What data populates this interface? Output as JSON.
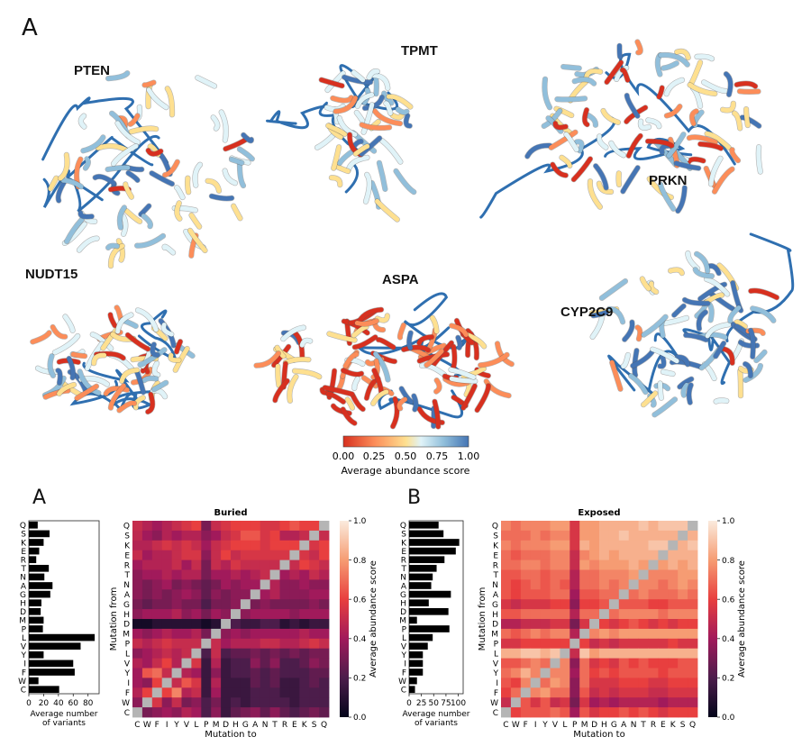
{
  "top_figure": {
    "panel_label": "A",
    "proteins": [
      {
        "name": "PTEN"
      },
      {
        "name": "TPMT"
      },
      {
        "name": "PRKN"
      },
      {
        "name": "NUDT15"
      },
      {
        "name": "ASPA"
      },
      {
        "name": "CYP2C9"
      }
    ],
    "colorbar": {
      "label": "Average abundance score",
      "ticks": [
        "0.00",
        "0.25",
        "0.50",
        "0.75",
        "1.00"
      ],
      "colors": [
        "#d7301f",
        "#fc8d59",
        "#fee090",
        "#e0f3f8",
        "#91bfdb",
        "#4575b4"
      ]
    }
  },
  "chart_data": [
    {
      "type": "bar",
      "orientation": "horizontal",
      "panel_label": "A",
      "categories": [
        "Q",
        "S",
        "K",
        "E",
        "R",
        "T",
        "N",
        "A",
        "G",
        "H",
        "D",
        "M",
        "P",
        "L",
        "V",
        "Y",
        "I",
        "F",
        "W",
        "C"
      ],
      "values": [
        12,
        28,
        20,
        14,
        10,
        27,
        21,
        32,
        29,
        17,
        16,
        20,
        19,
        89,
        70,
        20,
        60,
        62,
        13,
        41
      ],
      "xlabel": "Average number\nof variants",
      "xticks": [
        0,
        20,
        40,
        60,
        80
      ],
      "xlim": [
        0,
        95
      ]
    },
    {
      "type": "heatmap",
      "title": "Buried",
      "rows": [
        "Q",
        "S",
        "K",
        "E",
        "R",
        "T",
        "N",
        "A",
        "G",
        "H",
        "D",
        "M",
        "P",
        "L",
        "V",
        "Y",
        "I",
        "F",
        "W",
        "C"
      ],
      "cols": [
        "C",
        "W",
        "F",
        "I",
        "Y",
        "V",
        "L",
        "P",
        "M",
        "D",
        "H",
        "G",
        "A",
        "N",
        "T",
        "R",
        "E",
        "K",
        "S",
        "Q"
      ],
      "ylabel": "Mutation from",
      "xlabel": "Mutation to",
      "colorbar_label": "Average abundance score",
      "colorbar_ticks": [
        "0.0",
        "0.2",
        "0.4",
        "0.6",
        "0.8",
        "1.0"
      ],
      "vmin": 0.0,
      "vmax": 1.0,
      "values": [
        [
          0.5,
          0.45,
          0.4,
          0.45,
          0.5,
          0.55,
          0.6,
          0.3,
          0.5,
          0.55,
          0.6,
          0.6,
          0.6,
          0.55,
          0.55,
          0.6,
          0.65,
          0.6,
          0.6,
          0.78
        ],
        [
          0.48,
          0.4,
          0.35,
          0.45,
          0.4,
          0.45,
          0.45,
          0.35,
          0.4,
          0.5,
          0.55,
          0.65,
          0.65,
          0.55,
          0.6,
          0.45,
          0.45,
          0.5,
          0.78,
          0.5
        ],
        [
          0.45,
          0.45,
          0.5,
          0.55,
          0.5,
          0.55,
          0.5,
          0.4,
          0.5,
          0.55,
          0.6,
          0.6,
          0.6,
          0.55,
          0.6,
          0.6,
          0.6,
          0.78,
          0.55,
          0.6
        ],
        [
          0.5,
          0.4,
          0.45,
          0.45,
          0.5,
          0.55,
          0.55,
          0.35,
          0.5,
          0.6,
          0.5,
          0.55,
          0.55,
          0.55,
          0.55,
          0.55,
          0.78,
          0.55,
          0.5,
          0.6
        ],
        [
          0.4,
          0.45,
          0.45,
          0.45,
          0.5,
          0.4,
          0.5,
          0.3,
          0.5,
          0.45,
          0.55,
          0.5,
          0.5,
          0.5,
          0.5,
          0.78,
          0.5,
          0.6,
          0.55,
          0.5
        ],
        [
          0.35,
          0.4,
          0.4,
          0.45,
          0.4,
          0.45,
          0.45,
          0.3,
          0.4,
          0.4,
          0.45,
          0.4,
          0.45,
          0.5,
          0.78,
          0.4,
          0.45,
          0.4,
          0.5,
          0.45
        ],
        [
          0.35,
          0.3,
          0.35,
          0.4,
          0.3,
          0.35,
          0.3,
          0.25,
          0.3,
          0.4,
          0.35,
          0.4,
          0.4,
          0.78,
          0.45,
          0.35,
          0.35,
          0.4,
          0.35,
          0.35
        ],
        [
          0.35,
          0.3,
          0.35,
          0.3,
          0.35,
          0.4,
          0.35,
          0.25,
          0.35,
          0.3,
          0.35,
          0.35,
          0.78,
          0.4,
          0.45,
          0.35,
          0.35,
          0.35,
          0.4,
          0.4
        ],
        [
          0.3,
          0.25,
          0.3,
          0.3,
          0.35,
          0.3,
          0.3,
          0.2,
          0.3,
          0.3,
          0.35,
          0.78,
          0.3,
          0.35,
          0.3,
          0.3,
          0.3,
          0.3,
          0.35,
          0.3
        ],
        [
          0.35,
          0.4,
          0.4,
          0.4,
          0.45,
          0.35,
          0.4,
          0.3,
          0.4,
          0.35,
          0.78,
          0.35,
          0.4,
          0.4,
          0.4,
          0.4,
          0.35,
          0.4,
          0.4,
          0.4
        ],
        [
          0.05,
          0.05,
          0.1,
          0.1,
          0.1,
          0.1,
          0.1,
          0.05,
          0.1,
          0.78,
          0.2,
          0.15,
          0.15,
          0.2,
          0.2,
          0.1,
          0.15,
          0.1,
          0.15,
          0.15
        ],
        [
          0.4,
          0.35,
          0.4,
          0.45,
          0.4,
          0.4,
          0.45,
          0.3,
          0.78,
          0.35,
          0.4,
          0.35,
          0.4,
          0.4,
          0.4,
          0.4,
          0.4,
          0.45,
          0.4,
          0.4
        ],
        [
          0.5,
          0.45,
          0.5,
          0.55,
          0.5,
          0.5,
          0.5,
          0.78,
          0.5,
          0.4,
          0.45,
          0.45,
          0.45,
          0.5,
          0.5,
          0.45,
          0.45,
          0.5,
          0.55,
          0.5
        ],
        [
          0.35,
          0.4,
          0.45,
          0.5,
          0.45,
          0.5,
          0.78,
          0.2,
          0.5,
          0.2,
          0.25,
          0.25,
          0.3,
          0.25,
          0.3,
          0.25,
          0.3,
          0.25,
          0.3,
          0.3
        ],
        [
          0.45,
          0.4,
          0.5,
          0.6,
          0.45,
          0.78,
          0.55,
          0.15,
          0.45,
          0.15,
          0.2,
          0.2,
          0.35,
          0.25,
          0.35,
          0.2,
          0.2,
          0.25,
          0.35,
          0.3
        ],
        [
          0.4,
          0.65,
          0.7,
          0.5,
          0.78,
          0.45,
          0.4,
          0.15,
          0.35,
          0.15,
          0.2,
          0.2,
          0.25,
          0.2,
          0.25,
          0.2,
          0.2,
          0.2,
          0.25,
          0.25
        ],
        [
          0.4,
          0.35,
          0.6,
          0.78,
          0.5,
          0.65,
          0.55,
          0.15,
          0.45,
          0.15,
          0.15,
          0.15,
          0.25,
          0.2,
          0.25,
          0.15,
          0.15,
          0.2,
          0.25,
          0.2
        ],
        [
          0.45,
          0.6,
          0.78,
          0.6,
          0.75,
          0.45,
          0.5,
          0.15,
          0.4,
          0.15,
          0.15,
          0.15,
          0.2,
          0.2,
          0.2,
          0.15,
          0.15,
          0.2,
          0.2,
          0.2
        ],
        [
          0.35,
          0.78,
          0.55,
          0.35,
          0.5,
          0.3,
          0.35,
          0.2,
          0.3,
          0.15,
          0.2,
          0.15,
          0.2,
          0.2,
          0.2,
          0.2,
          0.15,
          0.2,
          0.2,
          0.2
        ],
        [
          0.78,
          0.3,
          0.35,
          0.4,
          0.35,
          0.45,
          0.4,
          0.2,
          0.35,
          0.15,
          0.25,
          0.3,
          0.35,
          0.25,
          0.35,
          0.25,
          0.2,
          0.25,
          0.3,
          0.25
        ]
      ]
    },
    {
      "type": "bar",
      "orientation": "horizontal",
      "panel_label": "B",
      "categories": [
        "Q",
        "S",
        "K",
        "E",
        "R",
        "T",
        "N",
        "A",
        "G",
        "H",
        "D",
        "M",
        "P",
        "L",
        "V",
        "Y",
        "I",
        "F",
        "W",
        "C"
      ],
      "values": [
        60,
        70,
        102,
        95,
        72,
        56,
        48,
        45,
        85,
        40,
        80,
        16,
        82,
        48,
        38,
        28,
        28,
        28,
        16,
        12
      ],
      "xlabel": "Average number\nof variants",
      "xticks": [
        0,
        25,
        50,
        75,
        100
      ],
      "xlim": [
        0,
        110
      ]
    },
    {
      "type": "heatmap",
      "title": "Exposed",
      "rows": [
        "Q",
        "S",
        "K",
        "E",
        "R",
        "T",
        "N",
        "A",
        "G",
        "H",
        "D",
        "M",
        "P",
        "L",
        "V",
        "Y",
        "I",
        "F",
        "W",
        "C"
      ],
      "cols": [
        "C",
        "W",
        "F",
        "I",
        "Y",
        "V",
        "L",
        "P",
        "M",
        "D",
        "H",
        "G",
        "A",
        "N",
        "T",
        "R",
        "E",
        "K",
        "S",
        "Q"
      ],
      "ylabel": "Mutation from",
      "xlabel": "Mutation to",
      "colorbar_label": "Average abundance score",
      "colorbar_ticks": [
        "0.0",
        "0.2",
        "0.4",
        "0.6",
        "0.8",
        "1.0"
      ],
      "vmin": 0.0,
      "vmax": 1.0,
      "values": [
        [
          0.75,
          0.7,
          0.75,
          0.75,
          0.75,
          0.8,
          0.8,
          0.55,
          0.8,
          0.8,
          0.85,
          0.85,
          0.85,
          0.85,
          0.9,
          0.85,
          0.9,
          0.9,
          0.9,
          0.78
        ],
        [
          0.7,
          0.7,
          0.7,
          0.75,
          0.7,
          0.75,
          0.75,
          0.55,
          0.8,
          0.8,
          0.85,
          0.85,
          0.9,
          0.85,
          0.85,
          0.85,
          0.85,
          0.85,
          0.78,
          0.85
        ],
        [
          0.75,
          0.7,
          0.75,
          0.75,
          0.75,
          0.8,
          0.8,
          0.55,
          0.85,
          0.8,
          0.85,
          0.85,
          0.85,
          0.85,
          0.85,
          0.9,
          0.9,
          0.78,
          0.85,
          0.9
        ],
        [
          0.7,
          0.65,
          0.7,
          0.7,
          0.7,
          0.75,
          0.75,
          0.5,
          0.75,
          0.8,
          0.85,
          0.8,
          0.85,
          0.85,
          0.85,
          0.85,
          0.78,
          0.85,
          0.85,
          0.85
        ],
        [
          0.7,
          0.7,
          0.75,
          0.75,
          0.7,
          0.75,
          0.75,
          0.5,
          0.8,
          0.75,
          0.8,
          0.8,
          0.8,
          0.85,
          0.8,
          0.78,
          0.8,
          0.85,
          0.8,
          0.85
        ],
        [
          0.65,
          0.65,
          0.7,
          0.7,
          0.65,
          0.7,
          0.7,
          0.45,
          0.7,
          0.7,
          0.75,
          0.75,
          0.75,
          0.8,
          0.78,
          0.75,
          0.75,
          0.75,
          0.8,
          0.8
        ],
        [
          0.65,
          0.6,
          0.65,
          0.7,
          0.65,
          0.7,
          0.65,
          0.45,
          0.7,
          0.7,
          0.75,
          0.7,
          0.75,
          0.78,
          0.75,
          0.75,
          0.7,
          0.75,
          0.8,
          0.75
        ],
        [
          0.65,
          0.6,
          0.65,
          0.65,
          0.65,
          0.7,
          0.7,
          0.4,
          0.65,
          0.65,
          0.7,
          0.7,
          0.78,
          0.7,
          0.75,
          0.7,
          0.7,
          0.7,
          0.75,
          0.7
        ],
        [
          0.55,
          0.5,
          0.55,
          0.55,
          0.55,
          0.6,
          0.6,
          0.35,
          0.6,
          0.6,
          0.65,
          0.78,
          0.65,
          0.65,
          0.65,
          0.6,
          0.6,
          0.65,
          0.65,
          0.65
        ],
        [
          0.65,
          0.65,
          0.7,
          0.7,
          0.7,
          0.7,
          0.7,
          0.45,
          0.7,
          0.7,
          0.78,
          0.7,
          0.75,
          0.75,
          0.75,
          0.75,
          0.7,
          0.75,
          0.75,
          0.75
        ],
        [
          0.45,
          0.45,
          0.5,
          0.5,
          0.5,
          0.55,
          0.55,
          0.3,
          0.55,
          0.78,
          0.6,
          0.55,
          0.6,
          0.65,
          0.6,
          0.55,
          0.6,
          0.55,
          0.6,
          0.6
        ],
        [
          0.7,
          0.65,
          0.7,
          0.75,
          0.7,
          0.75,
          0.75,
          0.45,
          0.78,
          0.75,
          0.8,
          0.75,
          0.8,
          0.8,
          0.8,
          0.8,
          0.8,
          0.8,
          0.8,
          0.8
        ],
        [
          0.55,
          0.55,
          0.6,
          0.6,
          0.6,
          0.6,
          0.6,
          0.78,
          0.6,
          0.5,
          0.55,
          0.5,
          0.55,
          0.55,
          0.55,
          0.55,
          0.55,
          0.6,
          0.55,
          0.55
        ],
        [
          0.85,
          0.85,
          0.9,
          0.9,
          0.85,
          0.9,
          0.78,
          0.5,
          0.9,
          0.8,
          0.85,
          0.85,
          0.85,
          0.85,
          0.85,
          0.85,
          0.85,
          0.85,
          0.85,
          0.85
        ],
        [
          0.65,
          0.65,
          0.7,
          0.75,
          0.7,
          0.78,
          0.75,
          0.35,
          0.7,
          0.55,
          0.6,
          0.55,
          0.65,
          0.6,
          0.65,
          0.6,
          0.6,
          0.6,
          0.65,
          0.65
        ],
        [
          0.7,
          0.75,
          0.85,
          0.75,
          0.78,
          0.75,
          0.75,
          0.4,
          0.7,
          0.6,
          0.65,
          0.6,
          0.65,
          0.65,
          0.65,
          0.65,
          0.6,
          0.65,
          0.65,
          0.65
        ],
        [
          0.65,
          0.6,
          0.75,
          0.78,
          0.7,
          0.8,
          0.75,
          0.35,
          0.7,
          0.55,
          0.55,
          0.55,
          0.6,
          0.6,
          0.6,
          0.55,
          0.55,
          0.6,
          0.6,
          0.6
        ],
        [
          0.6,
          0.7,
          0.78,
          0.75,
          0.8,
          0.7,
          0.7,
          0.35,
          0.65,
          0.5,
          0.55,
          0.5,
          0.55,
          0.55,
          0.55,
          0.5,
          0.5,
          0.55,
          0.55,
          0.55
        ],
        [
          0.5,
          0.78,
          0.65,
          0.55,
          0.65,
          0.5,
          0.55,
          0.3,
          0.55,
          0.4,
          0.45,
          0.4,
          0.45,
          0.45,
          0.45,
          0.45,
          0.4,
          0.45,
          0.45,
          0.45
        ],
        [
          0.78,
          0.6,
          0.65,
          0.65,
          0.65,
          0.7,
          0.65,
          0.4,
          0.65,
          0.55,
          0.6,
          0.6,
          0.65,
          0.6,
          0.65,
          0.6,
          0.55,
          0.6,
          0.6,
          0.6
        ]
      ]
    }
  ]
}
